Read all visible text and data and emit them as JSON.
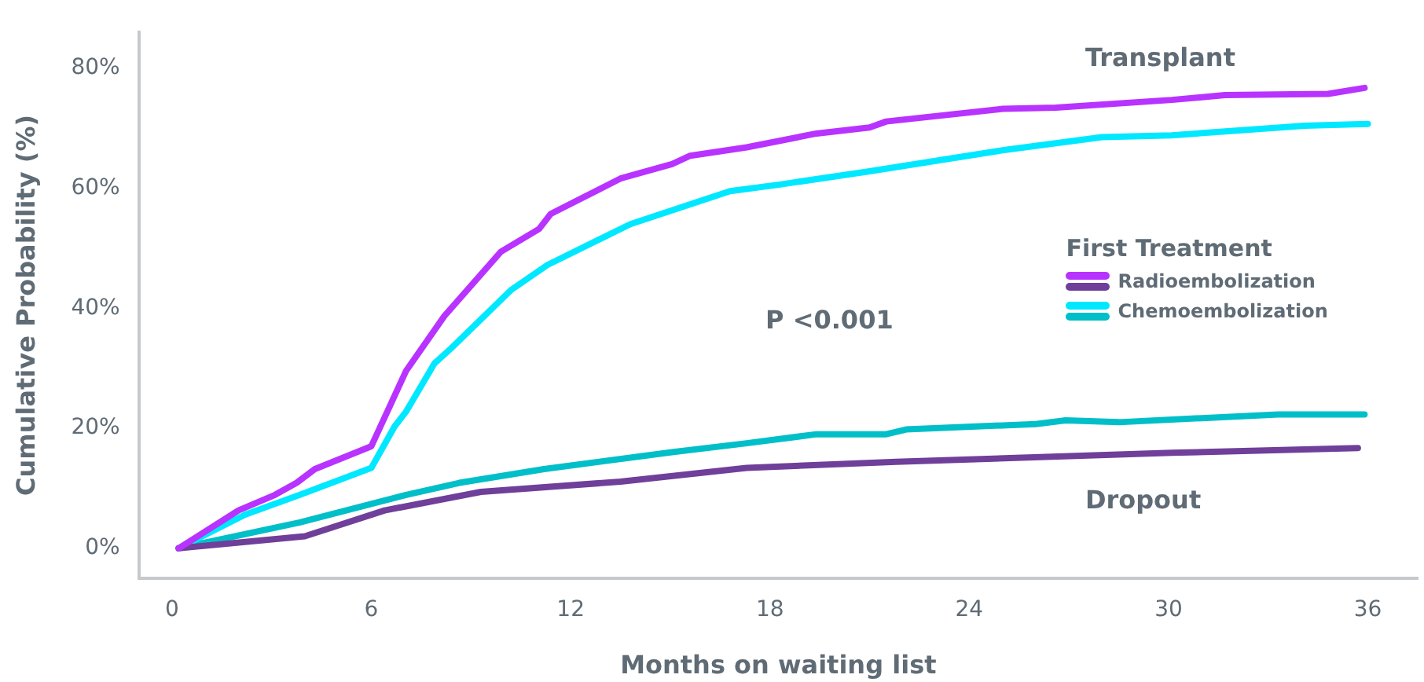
{
  "chart_data": {
    "type": "line",
    "xlabel": "Months on waiting list",
    "ylabel": "Cumulative Probability (%)",
    "legend_title": "First Treatment",
    "legend": "right",
    "grid": false,
    "marker": "none",
    "line_style": "solid",
    "xlim": [
      -1,
      37.5
    ],
    "xticks": [
      0,
      6,
      12,
      18,
      24,
      30,
      36
    ],
    "ylim": [
      -5,
      86
    ],
    "yticks": [
      {
        "value": 0,
        "label": "0%"
      },
      {
        "value": 20,
        "label": "20%"
      },
      {
        "value": 40,
        "label": "40%"
      },
      {
        "value": 60,
        "label": "60%"
      },
      {
        "value": 80,
        "label": "80%"
      }
    ],
    "annotations": [
      "Transplant",
      "Dropout",
      "P <0.001"
    ],
    "series": [
      {
        "name": "Radioembolization",
        "color": "#b833ff",
        "x": [
          0.2,
          2.0,
          3.1,
          3.75,
          4.3,
          6.0,
          7.05,
          8.2,
          9.9,
          11.05,
          11.4,
          13.5,
          15.05,
          15.6,
          17.3,
          19.4,
          21.0,
          21.5,
          25.0,
          26.6,
          30.1,
          31.7,
          34.8,
          35.9
        ],
        "values": [
          0,
          6.3,
          8.9,
          10.9,
          13.2,
          17.0,
          29.6,
          38.7,
          49.4,
          53.2,
          55.7,
          61.6,
          64,
          65.4,
          66.8,
          69.1,
          70.1,
          71.1,
          73.2,
          73.4,
          74.7,
          75.5,
          75.7,
          76.7
        ]
      },
      {
        "color": "#6f3f9a",
        "x": [
          0.2,
          4.0,
          6.4,
          9.3,
          13.5,
          17.3,
          21.8,
          30.1,
          35.7
        ],
        "values": [
          0,
          2.0,
          6.3,
          9.4,
          11.1,
          13.4,
          14.4,
          15.9,
          16.7
        ]
      },
      {
        "name": "Chemoembolization",
        "color": "#00e8ff",
        "x": [
          0.2,
          2.2,
          3.85,
          6.0,
          6.7,
          7.05,
          7.9,
          8.4,
          10.2,
          11.3,
          13.8,
          16.8,
          18.3,
          21.0,
          25.0,
          28.0,
          30.1,
          34.1,
          36.0
        ],
        "values": [
          0,
          5.6,
          8.9,
          13.4,
          20.3,
          22.8,
          30.8,
          33.3,
          43,
          47.2,
          54,
          59.5,
          60.6,
          62.8,
          66.3,
          68.5,
          68.8,
          70.4,
          70.7
        ]
      },
      {
        "color": "#00bfc8",
        "x": [
          0.2,
          3.85,
          7.05,
          8.65,
          11.2,
          15.05,
          17.3,
          19.4,
          21.5,
          22.1,
          26.0,
          26.9,
          28.5,
          33.3,
          35.9
        ],
        "values": [
          0,
          4.3,
          8.9,
          10.9,
          13.2,
          16,
          17.5,
          19,
          19,
          19.8,
          20.7,
          21.3,
          21,
          22.3,
          22.3
        ]
      }
    ]
  }
}
